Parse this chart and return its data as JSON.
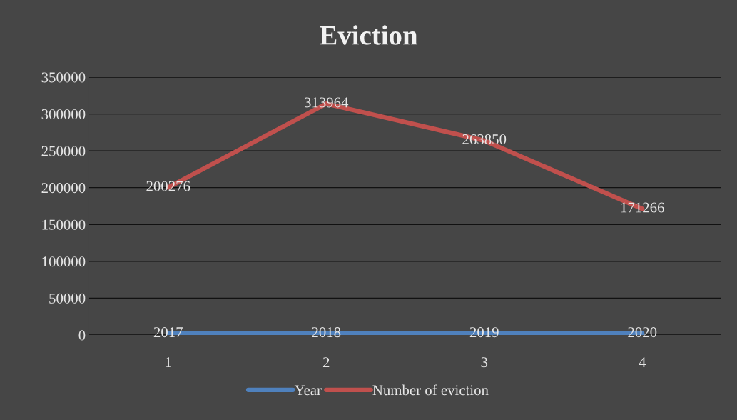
{
  "chart_data": {
    "type": "line",
    "title": "Eviction",
    "categories": [
      "1",
      "2",
      "3",
      "4"
    ],
    "series": [
      {
        "name": "Year",
        "color": "#4f81bd",
        "values": [
          2017,
          2018,
          2019,
          2020
        ]
      },
      {
        "name": "Number of eviction",
        "color": "#c0504d",
        "values": [
          200276,
          313964,
          263850,
          171266
        ]
      }
    ],
    "ylim": [
      0,
      350000
    ],
    "yticks": [
      0,
      50000,
      100000,
      150000,
      200000,
      250000,
      300000,
      350000
    ],
    "grid": "y",
    "legend": "bottom",
    "data_labels": true,
    "marker": "none",
    "line_style": "solid"
  }
}
